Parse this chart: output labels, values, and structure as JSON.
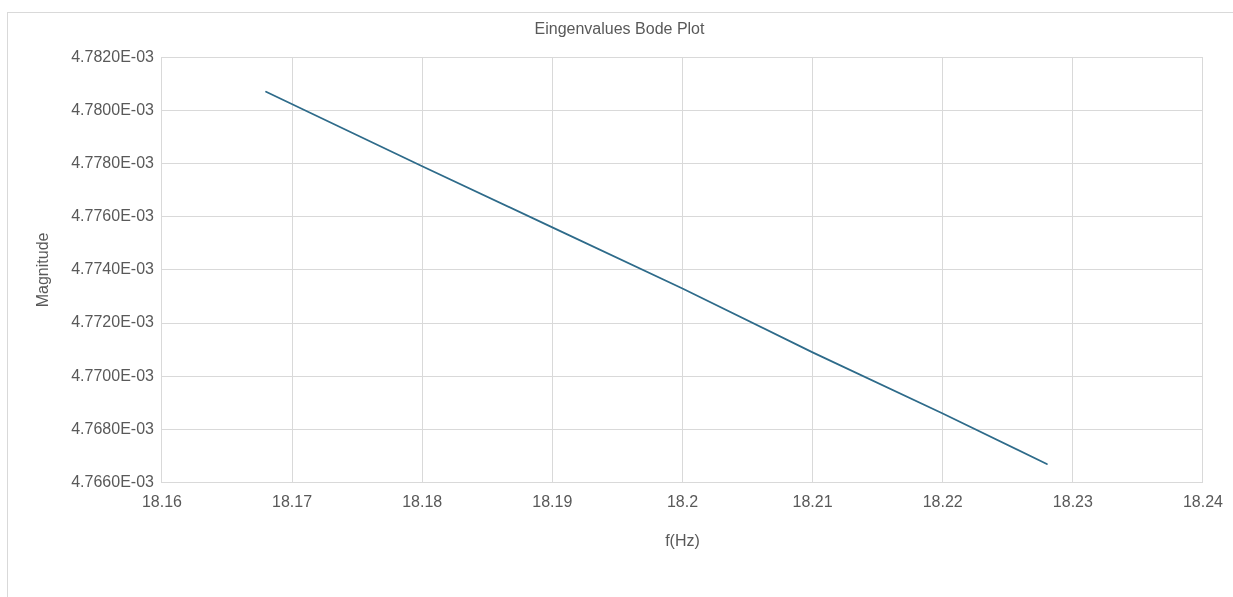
{
  "chart_data": {
    "type": "line",
    "title": "Eingenvalues Bode Plot",
    "xlabel": "f(Hz)",
    "ylabel": "Magnitude",
    "x": [
      18.168,
      18.18,
      18.19,
      18.2,
      18.21,
      18.22,
      18.228
    ],
    "series": [
      {
        "color": "#2e6b8a",
        "values": [
          0.0047807,
          0.0047779,
          0.0047756,
          0.0047733,
          0.0047709,
          0.0047686,
          0.0047667
        ]
      }
    ],
    "xlim": [
      18.16,
      18.24
    ],
    "xticks": [
      18.16,
      18.17,
      18.18,
      18.19,
      18.2,
      18.21,
      18.22,
      18.23,
      18.24
    ],
    "ylim": [
      0.004766,
      0.004782
    ],
    "yticks": [
      {
        "value": 0.004766,
        "label": "4.7660E-03"
      },
      {
        "value": 0.004768,
        "label": "4.7680E-03"
      },
      {
        "value": 0.00477,
        "label": "4.7700E-03"
      },
      {
        "value": 0.004772,
        "label": "4.7720E-03"
      },
      {
        "value": 0.004774,
        "label": "4.7740E-03"
      },
      {
        "value": 0.004776,
        "label": "4.7760E-03"
      },
      {
        "value": 0.004778,
        "label": "4.7780E-03"
      },
      {
        "value": 0.00478,
        "label": "4.7800E-03"
      },
      {
        "value": 0.004782,
        "label": "4.7820E-03"
      }
    ],
    "grid": true,
    "legend": false,
    "marker": "none",
    "line_style": "solid"
  }
}
